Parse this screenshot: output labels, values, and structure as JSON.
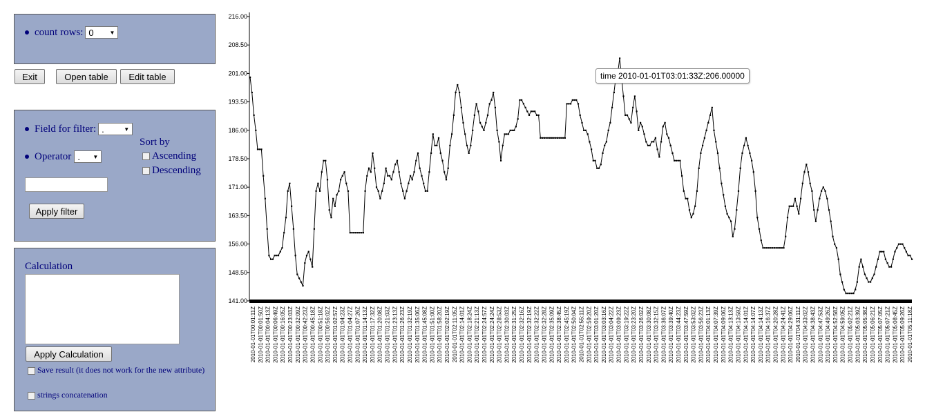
{
  "controls": {
    "count_rows_label": "count rows:",
    "count_rows_value": "0",
    "exit_label": "Exit",
    "open_table_label": "Open table",
    "edit_table_label": "Edit table"
  },
  "filter": {
    "field_label": "Field for filter:",
    "field_value": ".",
    "operator_label": "Operator",
    "operator_value": ".",
    "sort_by_label": "Sort by",
    "ascending_label": "Ascending",
    "descending_label": "Descending",
    "value_input": "",
    "apply_label": "Apply filter"
  },
  "calculation": {
    "title": "Calculation",
    "text": "",
    "apply_label": "Apply Calculation",
    "save_result_label": "Save result (it does not work for the new attribute)",
    "strings_concat_label": "strings concatenation"
  },
  "colors": {
    "panel": "#9aa8c8",
    "panel_text": "#00007a",
    "line": "#000000"
  },
  "chart_data": {
    "type": "line",
    "title": "",
    "xlabel": "",
    "ylabel": "",
    "ylim": [
      141,
      216
    ],
    "yticks": [
      "216.00",
      "208.50",
      "201.00",
      "193.50",
      "186.00",
      "178.50",
      "171.00",
      "163.50",
      "156.00",
      "148.50",
      "141.00"
    ],
    "tooltip": "time 2010-01-01T03:01:33Z:206.00000",
    "x_tick_labels": [
      "2010-01-01T00:01:11Z",
      "2010-01-01T00:01:50Z",
      "2010-01-01T00:04:13Z",
      "2010-01-01T00:06:49Z",
      "2010-01-01T00:16:05Z",
      "2010-01-01T00:23:03Z",
      "2010-01-01T00:32:09Z",
      "2010-01-01T00:42:23Z",
      "2010-01-01T00:45:18Z",
      "2010-01-01T00:51:18Z",
      "2010-01-01T00:56:02Z",
      "2010-01-01T01:02:57Z",
      "2010-01-01T01:04:23Z",
      "2010-01-01T01:04:27Z",
      "2010-01-01T01:07:26Z",
      "2010-01-01T01:14:13Z",
      "2010-01-01T01:17:32Z",
      "2010-01-01T01:20:08Z",
      "2010-01-01T01:21:03Z",
      "2010-01-01T01:23:13Z",
      "2010-01-01T01:26:23Z",
      "2010-01-01T01:32:19Z",
      "2010-01-01T01:35:06Z",
      "2010-01-01T01:45:08Z",
      "2010-01-01T01:51:00Z",
      "2010-01-01T01:58:20Z",
      "2010-01-01T02:02:19Z",
      "2010-01-01T02:11:05Z",
      "2010-01-01T02:14:01Z",
      "2010-01-01T02:18:24Z",
      "2010-01-01T02:21:13Z",
      "2010-01-01T02:24:57Z",
      "2010-01-01T02:24:24Z",
      "2010-01-01T02:28:53Z",
      "2010-01-01T02:30:03Z",
      "2010-01-01T02:31:25Z",
      "2010-01-01T02:32:16Z",
      "2010-01-01T02:32:19Z",
      "2010-01-01T02:32:22Z",
      "2010-01-01T02:32:28Z",
      "2010-01-01T02:35:09Z",
      "2010-01-01T02:38:45Z",
      "2010-01-01T02:45:19Z",
      "2010-01-01T02:50:04Z",
      "2010-01-01T02:55:11Z",
      "2010-01-01T02:59:20Z",
      "2010-01-01T03:01:20Z",
      "2010-01-01T03:03:16Z",
      "2010-01-01T03:04:22Z",
      "2010-01-01T03:09:23Z",
      "2010-01-01T03:19:22Z",
      "2010-01-01T03:23:20Z",
      "2010-01-01T03:26:02Z",
      "2010-01-01T03:30:08Z",
      "2010-01-01T03:32:15Z",
      "2010-01-01T03:36:07Z",
      "2010-01-01T03:39:40Z",
      "2010-01-01T03:44:23Z",
      "2010-01-01T03:47:59Z",
      "2010-01-01T03:53:02Z",
      "2010-01-01T03:56:23Z",
      "2010-01-01T04:01:13Z",
      "2010-01-01T04:07:39Z",
      "2010-01-01T04:09:06Z",
      "2010-01-01T04:13:13Z",
      "2010-01-01T04:13:59Z",
      "2010-01-01T04:14:01Z",
      "2010-01-01T04:14:07Z",
      "2010-01-01T04:14:13Z",
      "2010-01-01T04:16:37Z",
      "2010-01-01T04:20:28Z",
      "2010-01-01T04:24:41Z",
      "2010-01-01T04:29:06Z",
      "2010-01-01T04:31:11Z",
      "2010-01-01T04:33:02Z",
      "2010-01-01T04:38:43Z",
      "2010-01-01T04:47:53Z",
      "2010-01-01T04:49:26Z",
      "2010-01-01T04:52:58Z",
      "2010-01-01T04:59:05Z",
      "2010-01-01T05:02:21Z",
      "2010-01-01T05:03:39Z",
      "2010-01-01T05:05:38Z",
      "2010-01-01T05:06:21Z",
      "2010-01-01T05:07:05Z",
      "2010-01-01T05:07:21Z",
      "2010-01-01T05:08:45Z",
      "2010-01-01T05:09:26Z",
      "2010-01-01T05:11:18Z"
    ],
    "series": [
      {
        "values": [
          200,
          196,
          190,
          186,
          181,
          181,
          181,
          174,
          168,
          160,
          153,
          152,
          152,
          153,
          153,
          153,
          154,
          155,
          159,
          163,
          170,
          172,
          166,
          160,
          153,
          148,
          147,
          146,
          145,
          151,
          153,
          154,
          152,
          150,
          160,
          170,
          172,
          170,
          175,
          178,
          178,
          173,
          165,
          163,
          168,
          166,
          169,
          170,
          173,
          174,
          175,
          172,
          170,
          159,
          159,
          159,
          159,
          159,
          159,
          159,
          159,
          170,
          174,
          176,
          175,
          180,
          176,
          171,
          170,
          168,
          170,
          172,
          176,
          174,
          174,
          173,
          175,
          177,
          178,
          175,
          172,
          170,
          168,
          170,
          172,
          174,
          173,
          175,
          178,
          180,
          176,
          174,
          172,
          170,
          170,
          175,
          180,
          185,
          182,
          182,
          184,
          180,
          178,
          175,
          173,
          176,
          182,
          185,
          190,
          196,
          198,
          196,
          192,
          188,
          185,
          182,
          180,
          182,
          186,
          190,
          193,
          191,
          188,
          187,
          186,
          188,
          190,
          193,
          194,
          196,
          192,
          186,
          183,
          178,
          182,
          185,
          185,
          185,
          186,
          186,
          186,
          187,
          189,
          194,
          194,
          193,
          192,
          191,
          190,
          191,
          191,
          191,
          190,
          190,
          184,
          184,
          184,
          184,
          184,
          184,
          184,
          184,
          184,
          184,
          184,
          184,
          184,
          184,
          193,
          193,
          193,
          194,
          194,
          194,
          193,
          190,
          188,
          186,
          186,
          185,
          183,
          181,
          178,
          178,
          176,
          176,
          177,
          180,
          182,
          183,
          186,
          188,
          192,
          196,
          200,
          201,
          205,
          200,
          195,
          190,
          190,
          189,
          188,
          192,
          195,
          191,
          186,
          188,
          187,
          185,
          183,
          182,
          182,
          183,
          183,
          184,
          181,
          179,
          183,
          187,
          188,
          185,
          184,
          182,
          180,
          178,
          178,
          178,
          178,
          174,
          170,
          168,
          168,
          165,
          163,
          164,
          166,
          170,
          176,
          180,
          182,
          184,
          186,
          188,
          190,
          192,
          186,
          183,
          180,
          176,
          172,
          169,
          166,
          164,
          163,
          162,
          158,
          160,
          165,
          170,
          176,
          180,
          182,
          184,
          182,
          180,
          178,
          175,
          170,
          163,
          160,
          157,
          155,
          155,
          155,
          155,
          155,
          155,
          155,
          155,
          155,
          155,
          155,
          155,
          158,
          163,
          166,
          166,
          166,
          168,
          166,
          164,
          168,
          172,
          175,
          177,
          175,
          172,
          170,
          165,
          162,
          165,
          168,
          170,
          171,
          170,
          168,
          165,
          162,
          158,
          156,
          155,
          152,
          148,
          146,
          144,
          143,
          143,
          143,
          143,
          143,
          144,
          146,
          150,
          152,
          150,
          148,
          147,
          146,
          146,
          147,
          148,
          150,
          152,
          154,
          154,
          154,
          152,
          151,
          150,
          150,
          152,
          154,
          155,
          156,
          156,
          156,
          155,
          154,
          153,
          153,
          152
        ]
      }
    ]
  }
}
